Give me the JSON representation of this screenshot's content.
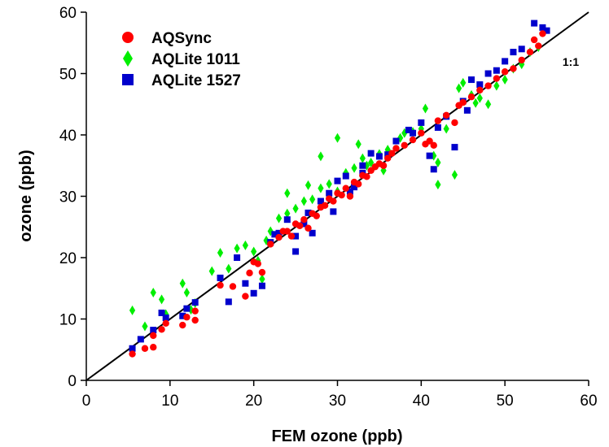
{
  "chart_data": {
    "type": "scatter",
    "title": "",
    "xlabel": "FEM ozone (ppb)",
    "ylabel": "ozone (ppb)",
    "xlim": [
      0,
      60
    ],
    "ylim": [
      0,
      60
    ],
    "x_ticks": [
      0,
      10,
      20,
      30,
      40,
      50,
      60
    ],
    "y_ticks": [
      0,
      10,
      20,
      30,
      40,
      50,
      60
    ],
    "grid": false,
    "legend_position": "top-left",
    "reference_line": {
      "label": "1:1",
      "slope": 1,
      "intercept": 0
    },
    "series": [
      {
        "name": "AQSync",
        "marker": "circle",
        "color": "#ff0000",
        "points": [
          [
            5.5,
            4.3
          ],
          [
            7,
            5.2
          ],
          [
            8,
            5.4
          ],
          [
            8,
            7.3
          ],
          [
            9,
            8.3
          ],
          [
            9.5,
            9.3
          ],
          [
            11.5,
            9.0
          ],
          [
            12,
            10.3
          ],
          [
            13,
            9.8
          ],
          [
            13,
            11.3
          ],
          [
            16,
            15.5
          ],
          [
            17.5,
            15.3
          ],
          [
            19,
            13.7
          ],
          [
            19.5,
            17.5
          ],
          [
            20,
            19.3
          ],
          [
            20.5,
            19.0
          ],
          [
            21,
            17.6
          ],
          [
            22,
            22.2
          ],
          [
            23,
            23.3
          ],
          [
            23.5,
            24.3
          ],
          [
            24,
            24.3
          ],
          [
            24.5,
            23.5
          ],
          [
            25,
            25.5
          ],
          [
            25.5,
            25.2
          ],
          [
            26,
            26.2
          ],
          [
            26.5,
            24.8
          ],
          [
            27,
            27.2
          ],
          [
            27.5,
            26.8
          ],
          [
            28,
            28.2
          ],
          [
            28.5,
            28.5
          ],
          [
            29,
            29.6
          ],
          [
            29.5,
            29.2
          ],
          [
            30,
            30.5
          ],
          [
            30.5,
            30.2
          ],
          [
            31,
            31.3
          ],
          [
            31.5,
            30.0
          ],
          [
            32,
            32.3
          ],
          [
            32.5,
            32.0
          ],
          [
            33,
            33.4
          ],
          [
            33.5,
            33.2
          ],
          [
            34,
            34.2
          ],
          [
            34.5,
            34.8
          ],
          [
            35,
            35.3
          ],
          [
            35.5,
            35.0
          ],
          [
            36,
            36.2
          ],
          [
            36.5,
            37.0
          ],
          [
            37,
            37.8
          ],
          [
            38,
            38.3
          ],
          [
            39,
            39.2
          ],
          [
            40,
            40.3
          ],
          [
            40.5,
            38.5
          ],
          [
            41,
            39.0
          ],
          [
            41.5,
            38.3
          ],
          [
            42,
            42.3
          ],
          [
            43,
            43.2
          ],
          [
            44,
            42.0
          ],
          [
            44.5,
            44.8
          ],
          [
            45,
            45.3
          ],
          [
            46,
            46.2
          ],
          [
            47,
            47.3
          ],
          [
            48,
            48.0
          ],
          [
            49,
            49.2
          ],
          [
            50,
            50.3
          ],
          [
            51,
            50.8
          ],
          [
            52,
            52.2
          ],
          [
            53,
            53.5
          ],
          [
            54,
            54.5
          ],
          [
            54.5,
            56.5
          ],
          [
            53.5,
            55.5
          ]
        ]
      },
      {
        "name": "AQLite 1011",
        "marker": "diamond",
        "color": "#00ee00",
        "points": [
          [
            5.5,
            11.4
          ],
          [
            7,
            8.8
          ],
          [
            8,
            14.3
          ],
          [
            9,
            13.2
          ],
          [
            9.5,
            10.8
          ],
          [
            11.5,
            15.8
          ],
          [
            12,
            14.3
          ],
          [
            12.5,
            11.5
          ],
          [
            13,
            12.6
          ],
          [
            16,
            20.8
          ],
          [
            17,
            18.2
          ],
          [
            18,
            21.5
          ],
          [
            19,
            22.0
          ],
          [
            20,
            21.0
          ],
          [
            20.5,
            19.5
          ],
          [
            21.5,
            22.8
          ],
          [
            22,
            24.3
          ],
          [
            23,
            26.4
          ],
          [
            24,
            27.2
          ],
          [
            25,
            28.0
          ],
          [
            26,
            29.2
          ],
          [
            27,
            29.5
          ],
          [
            28,
            31.3
          ],
          [
            29,
            32.0
          ],
          [
            30,
            30.8
          ],
          [
            31,
            33.8
          ],
          [
            32,
            34.6
          ],
          [
            33,
            36.2
          ],
          [
            34,
            35.5
          ],
          [
            35,
            36.9
          ],
          [
            36,
            37.6
          ],
          [
            38,
            40.3
          ],
          [
            39,
            40.5
          ],
          [
            40,
            41.0
          ],
          [
            40.5,
            44.3
          ],
          [
            41.5,
            36.6
          ],
          [
            42,
            35.5
          ],
          [
            42,
            31.9
          ],
          [
            43,
            41.0
          ],
          [
            44,
            33.5
          ],
          [
            45,
            48.5
          ],
          [
            46,
            46.5
          ],
          [
            47,
            46.0
          ],
          [
            48,
            45.0
          ],
          [
            49,
            48.0
          ],
          [
            50,
            49.0
          ],
          [
            51,
            50.8
          ],
          [
            52,
            51.5
          ],
          [
            53,
            53.5
          ],
          [
            54,
            54.3
          ],
          [
            30,
            39.5
          ],
          [
            28,
            36.5
          ],
          [
            26.5,
            31.8
          ],
          [
            24,
            30.5
          ],
          [
            32.5,
            38.5
          ],
          [
            33.5,
            35.0
          ],
          [
            35.5,
            34.2
          ],
          [
            46.5,
            45.2
          ],
          [
            44.5,
            47.6
          ],
          [
            37.5,
            39.5
          ],
          [
            21,
            16.5
          ],
          [
            15,
            17.8
          ]
        ]
      },
      {
        "name": "AQLite 1527",
        "marker": "square",
        "color": "#0000cc",
        "points": [
          [
            5.5,
            5.2
          ],
          [
            6.5,
            6.7
          ],
          [
            8,
            8.2
          ],
          [
            9,
            11.0
          ],
          [
            9.5,
            10.2
          ],
          [
            11.5,
            10.5
          ],
          [
            12,
            11.7
          ],
          [
            13,
            12.7
          ],
          [
            16,
            16.7
          ],
          [
            17,
            12.8
          ],
          [
            18,
            20.0
          ],
          [
            19,
            15.8
          ],
          [
            20,
            14.2
          ],
          [
            21,
            15.4
          ],
          [
            22,
            22.5
          ],
          [
            23,
            24.0
          ],
          [
            24,
            26.2
          ],
          [
            25,
            21.0
          ],
          [
            25,
            23.5
          ],
          [
            26.5,
            27.3
          ],
          [
            27,
            24.0
          ],
          [
            28,
            29.2
          ],
          [
            29,
            30.5
          ],
          [
            30,
            32.5
          ],
          [
            31,
            33.3
          ],
          [
            32,
            31.5
          ],
          [
            33,
            35.0
          ],
          [
            34,
            37.0
          ],
          [
            35,
            36.5
          ],
          [
            36,
            36.8
          ],
          [
            39,
            40.3
          ],
          [
            40,
            42.0
          ],
          [
            41,
            36.6
          ],
          [
            41.5,
            34.4
          ],
          [
            42,
            41.2
          ],
          [
            43,
            43.0
          ],
          [
            44,
            38.0
          ],
          [
            45,
            45.5
          ],
          [
            46,
            49.0
          ],
          [
            47,
            48.2
          ],
          [
            48,
            50.0
          ],
          [
            49,
            50.5
          ],
          [
            50,
            52.0
          ],
          [
            51,
            53.5
          ],
          [
            52,
            54.0
          ],
          [
            53.5,
            58.2
          ],
          [
            54.5,
            57.5
          ],
          [
            55,
            57.0
          ],
          [
            38.5,
            40.8
          ],
          [
            31.5,
            30.8
          ],
          [
            26,
            25.5
          ],
          [
            22.5,
            23.8
          ],
          [
            29.5,
            27.5
          ],
          [
            33,
            33.8
          ],
          [
            37,
            39.0
          ],
          [
            45.5,
            44.0
          ]
        ]
      }
    ]
  }
}
